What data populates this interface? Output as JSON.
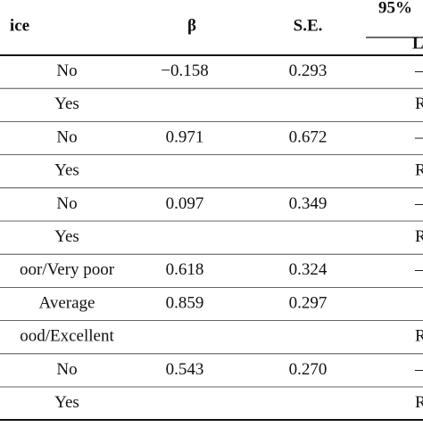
{
  "table": {
    "header": {
      "label": "ice",
      "beta": "β",
      "se": "S.E.",
      "ci": "95%",
      "ci_sub": "L"
    },
    "rows": [
      {
        "label": "No",
        "beta": "−0.158",
        "se": "0.293",
        "ci": "–"
      },
      {
        "label": "Yes",
        "ci": "Re"
      },
      {
        "label": "No",
        "beta": "0.971",
        "se": "0.672",
        "ci": "–"
      },
      {
        "label": "Yes",
        "ci": "Re"
      },
      {
        "label": "No",
        "beta": "0.097",
        "se": "0.349",
        "ci": "–"
      },
      {
        "label": "Yes",
        "ci": "Re"
      },
      {
        "label": "oor/Very poor",
        "beta": "0.618",
        "se": "0.324",
        "ci": "–"
      },
      {
        "label": "Average",
        "beta": "0.859",
        "se": "0.297"
      },
      {
        "label": "ood/Excellent",
        "ci": "Re"
      },
      {
        "label": "No",
        "beta": "0.543",
        "se": "0.270",
        "ci": "–"
      },
      {
        "label": "Yes",
        "ci": "Re"
      }
    ]
  }
}
